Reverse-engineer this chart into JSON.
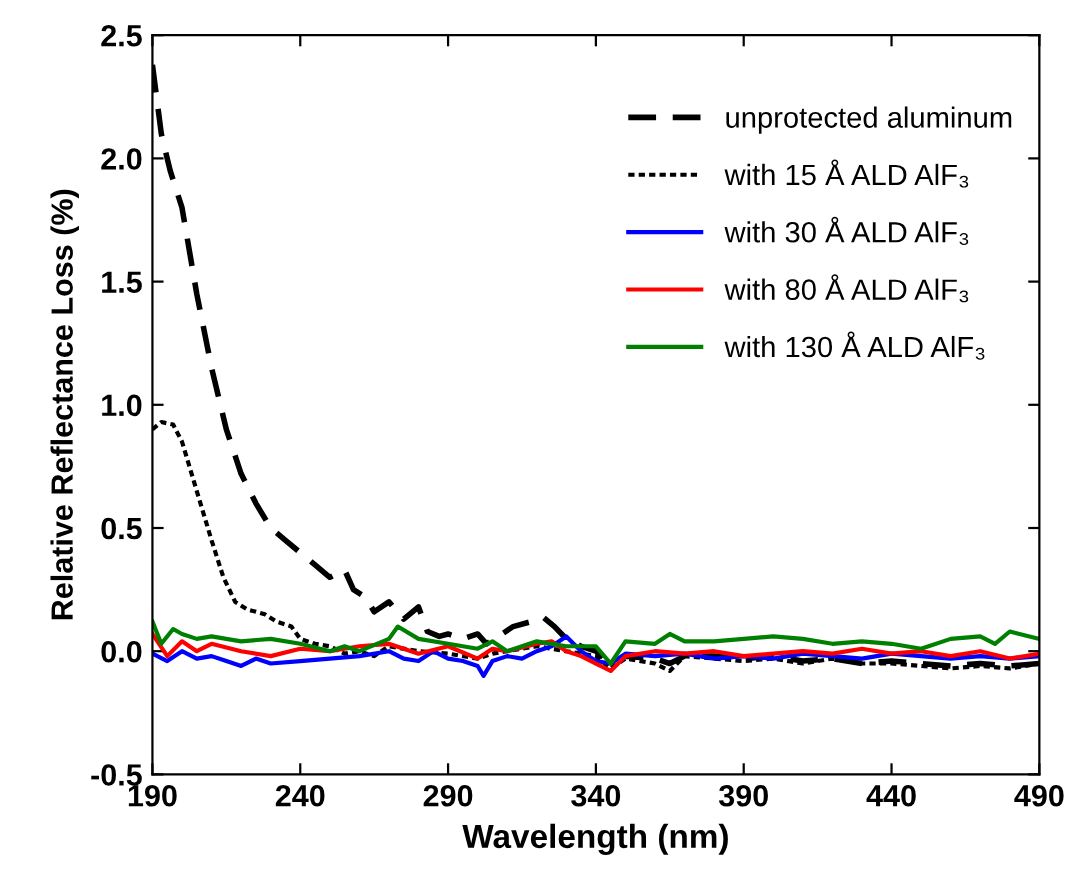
{
  "chart_data": {
    "type": "line",
    "xlabel": "Wavelength (nm)",
    "ylabel": "Relative Reflectance Loss (%)",
    "xlim": [
      190,
      490
    ],
    "ylim": [
      -0.5,
      2.5
    ],
    "xticks": [
      190,
      240,
      290,
      340,
      390,
      440,
      490
    ],
    "yticks": [
      {
        "value": -0.5,
        "label": "-0.5"
      },
      {
        "value": 0,
        "label": "0.0"
      },
      {
        "value": 0.5,
        "label": "0.5"
      },
      {
        "value": 1,
        "label": "1.0"
      },
      {
        "value": 1.5,
        "label": "1.5"
      },
      {
        "value": 2,
        "label": "2.0"
      },
      {
        "value": 2.5,
        "label": "2.5"
      }
    ],
    "grid": false,
    "legend": "right",
    "marker": "none",
    "series": [
      {
        "name": "unprotected aluminum",
        "color": "#000000",
        "line_style": "dashed",
        "x": [
          190,
          193,
          196,
          200,
          205,
          210,
          215,
          220,
          225,
          230,
          235,
          240,
          245,
          250,
          255,
          258,
          262,
          265,
          270,
          275,
          280,
          283,
          287,
          290,
          295,
          300,
          303,
          307,
          312,
          318,
          322,
          326,
          330,
          335,
          340,
          345,
          350,
          360,
          365,
          370,
          380,
          390,
          400,
          410,
          420,
          430,
          440,
          450,
          460,
          470,
          480,
          490
        ],
        "values": [
          2.38,
          2.1,
          1.95,
          1.8,
          1.45,
          1.15,
          0.9,
          0.72,
          0.6,
          0.5,
          0.45,
          0.4,
          0.35,
          0.3,
          0.33,
          0.25,
          0.22,
          0.16,
          0.2,
          0.13,
          0.18,
          0.08,
          0.06,
          0.07,
          0.05,
          0.07,
          0.03,
          0.06,
          0.1,
          0.12,
          0.14,
          0.1,
          0.05,
          0.02,
          0.0,
          -0.05,
          -0.02,
          -0.03,
          -0.05,
          -0.02,
          -0.02,
          -0.03,
          -0.02,
          -0.04,
          -0.03,
          -0.05,
          -0.04,
          -0.05,
          -0.06,
          -0.05,
          -0.06,
          -0.05
        ]
      },
      {
        "name": "with 15 Å ALD AlF₃",
        "color": "#000000",
        "line_style": "dotted",
        "x": [
          190,
          193,
          197,
          200,
          205,
          210,
          214,
          218,
          222,
          228,
          232,
          237,
          240,
          245,
          250,
          255,
          260,
          265,
          270,
          280,
          290,
          300,
          305,
          310,
          320,
          330,
          340,
          345,
          350,
          360,
          365,
          370,
          380,
          390,
          400,
          410,
          420,
          430,
          440,
          450,
          460,
          470,
          480,
          490
        ],
        "values": [
          0.9,
          0.93,
          0.92,
          0.85,
          0.65,
          0.45,
          0.3,
          0.2,
          0.17,
          0.15,
          0.12,
          0.1,
          0.05,
          0.03,
          0.02,
          -0.01,
          0.0,
          -0.02,
          0.02,
          0.0,
          -0.01,
          -0.03,
          -0.01,
          0.0,
          0.02,
          0.0,
          -0.02,
          -0.07,
          -0.03,
          -0.05,
          -0.08,
          -0.02,
          -0.03,
          -0.04,
          -0.03,
          -0.05,
          -0.03,
          -0.05,
          -0.05,
          -0.06,
          -0.07,
          -0.06,
          -0.07,
          -0.05
        ]
      },
      {
        "name": "with 30 Å ALD AlF₃",
        "color": "#0000ff",
        "line_style": "solid",
        "x": [
          190,
          195,
          200,
          205,
          210,
          215,
          220,
          225,
          230,
          240,
          250,
          260,
          270,
          275,
          280,
          285,
          290,
          295,
          300,
          302,
          305,
          310,
          315,
          320,
          325,
          330,
          335,
          340,
          345,
          350,
          360,
          370,
          380,
          390,
          400,
          410,
          420,
          430,
          440,
          450,
          460,
          470,
          480,
          490
        ],
        "values": [
          -0.01,
          -0.04,
          0.0,
          -0.03,
          -0.02,
          -0.04,
          -0.06,
          -0.03,
          -0.05,
          -0.04,
          -0.03,
          -0.02,
          0.0,
          -0.03,
          -0.04,
          0.0,
          -0.03,
          -0.04,
          -0.06,
          -0.1,
          -0.04,
          -0.02,
          -0.03,
          0.0,
          0.02,
          0.06,
          0.0,
          -0.04,
          -0.05,
          -0.01,
          -0.02,
          -0.01,
          -0.03,
          -0.02,
          -0.03,
          -0.01,
          -0.02,
          -0.03,
          -0.01,
          -0.02,
          -0.03,
          -0.02,
          -0.03,
          -0.02
        ]
      },
      {
        "name": "with 80 Å ALD AlF₃",
        "color": "#ff0000",
        "line_style": "solid",
        "x": [
          190,
          195,
          200,
          205,
          210,
          220,
          230,
          240,
          250,
          260,
          270,
          280,
          290,
          300,
          305,
          310,
          320,
          325,
          330,
          335,
          340,
          345,
          350,
          360,
          370,
          380,
          390,
          400,
          410,
          420,
          430,
          440,
          450,
          460,
          470,
          480,
          490
        ],
        "values": [
          0.07,
          -0.02,
          0.04,
          0.0,
          0.03,
          0.0,
          -0.02,
          0.01,
          0.0,
          0.02,
          0.03,
          -0.01,
          0.02,
          -0.03,
          0.01,
          0.0,
          0.03,
          0.04,
          0.0,
          -0.02,
          -0.05,
          -0.08,
          -0.02,
          0.0,
          -0.01,
          0.0,
          -0.02,
          -0.01,
          0.0,
          -0.01,
          0.01,
          -0.01,
          0.0,
          -0.02,
          0.0,
          -0.03,
          -0.01
        ]
      },
      {
        "name": "with 130 Å ALD AlF₃",
        "color": "#008000",
        "line_style": "solid",
        "x": [
          190,
          193,
          197,
          200,
          205,
          210,
          220,
          230,
          240,
          250,
          255,
          260,
          270,
          273,
          280,
          290,
          300,
          305,
          310,
          320,
          330,
          340,
          345,
          350,
          360,
          365,
          370,
          380,
          390,
          400,
          410,
          420,
          430,
          440,
          450,
          460,
          470,
          475,
          480,
          490
        ],
        "values": [
          0.12,
          0.03,
          0.09,
          0.07,
          0.05,
          0.06,
          0.04,
          0.05,
          0.03,
          0.0,
          0.02,
          0.0,
          0.05,
          0.1,
          0.05,
          0.03,
          0.01,
          0.04,
          0.0,
          0.04,
          0.02,
          0.02,
          -0.05,
          0.04,
          0.03,
          0.07,
          0.04,
          0.04,
          0.05,
          0.06,
          0.05,
          0.03,
          0.04,
          0.03,
          0.01,
          0.05,
          0.06,
          0.03,
          0.08,
          0.05
        ]
      }
    ]
  }
}
